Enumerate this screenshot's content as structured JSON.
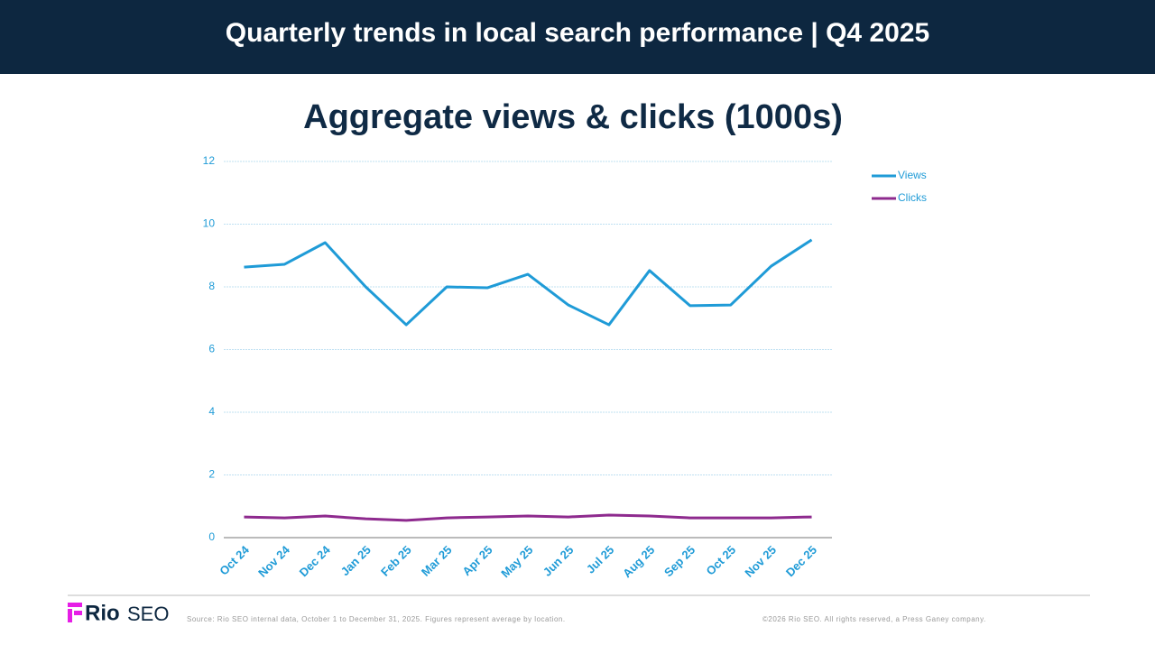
{
  "header": {
    "title": "Quarterly trends in local search performance | Q4 2025"
  },
  "chart_data": {
    "type": "line",
    "title": "Aggregate views & clicks (1000s)",
    "categories": [
      "Oct 24",
      "Nov 24",
      "Dec 24",
      "Jan 25",
      "Feb 25",
      "Mar 25",
      "Apr 25",
      "May 25",
      "Jun 25",
      "Jul 25",
      "Aug 25",
      "Sep 25",
      "Oct 25",
      "Nov 25",
      "Dec 25"
    ],
    "series": [
      {
        "name": "Views",
        "color": "#1f9bd7",
        "values": [
          8.63,
          8.72,
          9.41,
          8.0,
          6.79,
          8.0,
          7.97,
          8.4,
          7.42,
          6.79,
          8.52,
          7.4,
          7.42,
          8.66,
          9.5
        ]
      },
      {
        "name": "Clicks",
        "color": "#8e2a8e",
        "values": [
          0.66,
          0.63,
          0.69,
          0.6,
          0.55,
          0.63,
          0.66,
          0.69,
          0.66,
          0.72,
          0.69,
          0.63,
          0.63,
          0.63,
          0.66
        ]
      }
    ],
    "ylim": [
      0,
      12
    ],
    "yticks": [
      0,
      2,
      4,
      6,
      8,
      10,
      12
    ],
    "grid": true,
    "legend": "right"
  },
  "footer": {
    "logo_bold": "Rio",
    "logo_light": "SEO",
    "source": "Source: Rio SEO internal data, October 1 to December 31, 2025. Figures represent average by location.",
    "copyright": "©2026 Rio SEO. All rights reserved, a Press Ganey company."
  }
}
